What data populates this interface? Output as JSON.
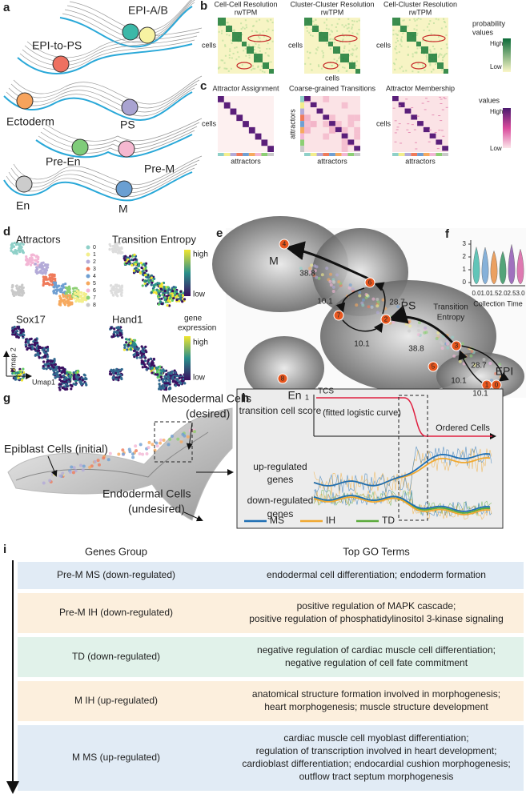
{
  "panel_a": {
    "letter": "a",
    "labels": [
      "EPI-A/B",
      "EPI-to-PS",
      "Ectoderm",
      "PS",
      "Pre-En",
      "Pre-M",
      "En",
      "M"
    ]
  },
  "panel_b": {
    "letter": "b",
    "titles": [
      [
        "Cell-Cell Resolution",
        "rwTPM"
      ],
      [
        "Cluster-Cluster Resolution",
        "rwTPM"
      ],
      [
        "Cell-Cluster Resolution",
        "rwTPM"
      ]
    ],
    "axis_label": "cells",
    "legend_title": [
      "probability",
      "values"
    ],
    "high": "High",
    "low": "Low"
  },
  "panel_c": {
    "letter": "c",
    "titles": [
      "Attractor Assignment",
      "Coarse-grained Transitions",
      "Attractor Membership"
    ],
    "rows_label": [
      "cells",
      "attractors",
      "cells"
    ],
    "cols_label": "attractors",
    "legend_title": "values",
    "high": "High",
    "low": "Low"
  },
  "panel_d": {
    "letter": "d",
    "titles": [
      "Attractors",
      "Transition Entropy",
      "Sox17",
      "Hand1"
    ],
    "attractors": [
      "0",
      "1",
      "2",
      "3",
      "4",
      "5",
      "6",
      "7",
      "8"
    ],
    "attractor_colors": [
      "#8fd0c8",
      "#f3ee8c",
      "#b3aad8",
      "#ef7a5a",
      "#6f9fd2",
      "#f6a95e",
      "#f3b6d5",
      "#8ccf74",
      "#c9c9c9"
    ],
    "entropy_high": "high",
    "entropy_low": "low",
    "expression_title": [
      "gene",
      "expression"
    ],
    "expression_high": "high",
    "expression_low": "low",
    "umap_y": "Umap 2",
    "umap_x": "Umap1"
  },
  "panel_e": {
    "letter": "e",
    "nodes": [
      "0",
      "1",
      "2",
      "3",
      "4",
      "5",
      "6",
      "7",
      "8"
    ],
    "regions": [
      "M",
      "PS",
      "En",
      "EPI"
    ],
    "edge_labels": [
      "38.8",
      "10.1",
      "28.7",
      "10.1",
      "38.8",
      "28.7",
      "10.1",
      "10.1"
    ]
  },
  "panel_f": {
    "letter": "f",
    "ylabel": [
      "Transition",
      "Entropy"
    ],
    "yticks": [
      "0",
      "1",
      "2",
      "3"
    ],
    "categories": [
      "0.0",
      "1.0",
      "1.5",
      "2.0",
      "2.5",
      "3.0"
    ],
    "xlabel": "Collection Time"
  },
  "panel_g": {
    "letter": "g",
    "mesoderm": [
      "Mesodermal Cells",
      "(desired)"
    ],
    "epiblast": "Epiblast Cells (initial)",
    "endoderm": [
      "Endodermal Cells",
      "(undesired)"
    ]
  },
  "panel_h": {
    "letter": "h",
    "tcs": "TCS",
    "one": "1",
    "score_label": "transition cell score",
    "curve_label": "(fitted logistic curve)",
    "x_label": "Ordered Cells",
    "up_label": [
      "up-regulated",
      "genes"
    ],
    "down_label": [
      "down-regulated",
      "genes"
    ],
    "legend": [
      {
        "name": "MS",
        "color": "#1f6fb4"
      },
      {
        "name": "IH",
        "color": "#f0a830"
      },
      {
        "name": "TD",
        "color": "#5aaa3a"
      }
    ]
  },
  "panel_i": {
    "letter": "i",
    "headers": [
      "Genes Group",
      "Top GO Terms"
    ],
    "rows": [
      {
        "group": "Pre-M MS (down-regulated)",
        "terms": [
          "endodermal cell differentiation; endoderm formation"
        ]
      },
      {
        "group": "Pre-M IH (down-regulated)",
        "terms": [
          "positive regulation of MAPK cascade;",
          "positive regulation of phosphatidylinositol 3-kinase signaling"
        ]
      },
      {
        "group": "TD (down-regulated)",
        "terms": [
          "negative regulation of cardiac muscle cell differentiation;",
          "negative regulation of cell fate commitment"
        ]
      },
      {
        "group": "M IH (up-regulated)",
        "terms": [
          "anatomical structure formation involved in morphogenesis;",
          "heart morphogenesis; muscle structure development"
        ]
      },
      {
        "group": "M MS (up-regulated)",
        "terms": [
          "cardiac muscle cell myoblast differentiation;",
          "regulation of transcription involved in heart development;",
          "cardioblast differentiation; endocardial cushion morphogenesis;",
          "outflow tract septum morphogenesis"
        ]
      }
    ]
  }
}
